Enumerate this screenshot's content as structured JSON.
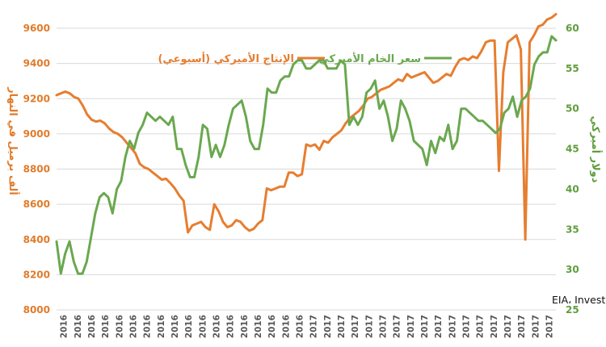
{
  "chart_data": {
    "type": "line",
    "source_note": "بروفسور جاسم عجاقة | المصدر: EIA، Investing.com",
    "x_tick_labels": [
      "2016",
      "2016",
      "2016",
      "2016",
      "2016",
      "2016",
      "2016",
      "2016",
      "2016",
      "2016",
      "2016",
      "2016",
      "2016",
      "2016",
      "2016",
      "2016",
      "2016",
      "2016",
      "2017",
      "2017",
      "2017",
      "2017",
      "2017",
      "2017",
      "2017",
      "2017",
      "2017",
      "2017",
      "2017",
      "2017",
      "2017",
      "2017",
      "2017",
      "2017",
      "2017",
      "2017"
    ],
    "y_left": {
      "label": "ألف برميل في النهار",
      "min": 8000,
      "max": 9600,
      "ticks": [
        8000,
        8200,
        8400,
        8600,
        8800,
        9000,
        9200,
        9400,
        9600
      ]
    },
    "y_right": {
      "label": "دولار أميركي",
      "min": 25,
      "max": 60,
      "ticks": [
        25,
        30,
        35,
        40,
        45,
        50,
        55,
        60
      ]
    },
    "legend_position": "top",
    "series": [
      {
        "name": "الإنتاج الأميركي (أسبوعي)",
        "axis": "left",
        "color": "#e67e30",
        "values": [
          9220,
          9230,
          9240,
          9230,
          9210,
          9200,
          9160,
          9110,
          9080,
          9070,
          9075,
          9060,
          9030,
          9010,
          9000,
          8980,
          8950,
          8920,
          8890,
          8830,
          8810,
          8800,
          8780,
          8760,
          8740,
          8745,
          8720,
          8690,
          8650,
          8620,
          8440,
          8480,
          8490,
          8500,
          8470,
          8455,
          8600,
          8560,
          8500,
          8470,
          8480,
          8510,
          8500,
          8470,
          8450,
          8460,
          8490,
          8510,
          8690,
          8680,
          8690,
          8700,
          8700,
          8780,
          8780,
          8760,
          8770,
          8940,
          8930,
          8940,
          8910,
          8960,
          8950,
          8980,
          9000,
          9020,
          9060,
          9090,
          9110,
          9130,
          9160,
          9200,
          9210,
          9230,
          9250,
          9260,
          9270,
          9290,
          9310,
          9300,
          9340,
          9320,
          9330,
          9340,
          9350,
          9320,
          9290,
          9300,
          9320,
          9340,
          9330,
          9380,
          9420,
          9430,
          9420,
          9440,
          9430,
          9470,
          9520,
          9530,
          9530,
          8790,
          9350,
          9520,
          9540,
          9560,
          9480,
          8400,
          9520,
          9560,
          9610,
          9620,
          9650,
          9660,
          9680
        ]
      },
      {
        "name": "سعر الخام الأميركي",
        "axis": "right",
        "color": "#6aa84f",
        "values": [
          33.5,
          29.5,
          32.0,
          33.5,
          31.0,
          29.5,
          29.5,
          31.0,
          34.0,
          37.0,
          39.0,
          39.5,
          39.0,
          37.0,
          40.0,
          41.0,
          44.0,
          46.0,
          45.0,
          47.0,
          48.0,
          49.5,
          49.0,
          48.5,
          49.0,
          48.5,
          48.0,
          49.0,
          45.0,
          45.0,
          43.0,
          41.5,
          41.5,
          44.0,
          48.0,
          47.5,
          44.0,
          45.5,
          44.0,
          45.5,
          48.0,
          50.0,
          50.5,
          51.0,
          49.0,
          46.0,
          45.0,
          45.0,
          48.0,
          52.5,
          52.0,
          52.0,
          53.5,
          54.0,
          54.0,
          55.5,
          56.0,
          56.0,
          55.0,
          55.0,
          55.5,
          56.0,
          56.0,
          55.0,
          55.0,
          55.0,
          56.0,
          55.5,
          48.0,
          49.0,
          48.0,
          49.0,
          52.0,
          52.5,
          53.5,
          50.0,
          51.0,
          49.0,
          46.0,
          47.5,
          51.0,
          50.0,
          48.5,
          46.0,
          45.5,
          45.0,
          43.0,
          46.0,
          44.5,
          46.5,
          46.0,
          48.0,
          45.0,
          46.0,
          50.0,
          50.0,
          49.5,
          49.0,
          48.5,
          48.5,
          48.0,
          47.5,
          47.0,
          47.5,
          49.5,
          50.0,
          51.5,
          49.0,
          51.0,
          51.5,
          52.5,
          55.5,
          56.5,
          57.0,
          57.0,
          59.0,
          58.5
        ]
      }
    ]
  }
}
